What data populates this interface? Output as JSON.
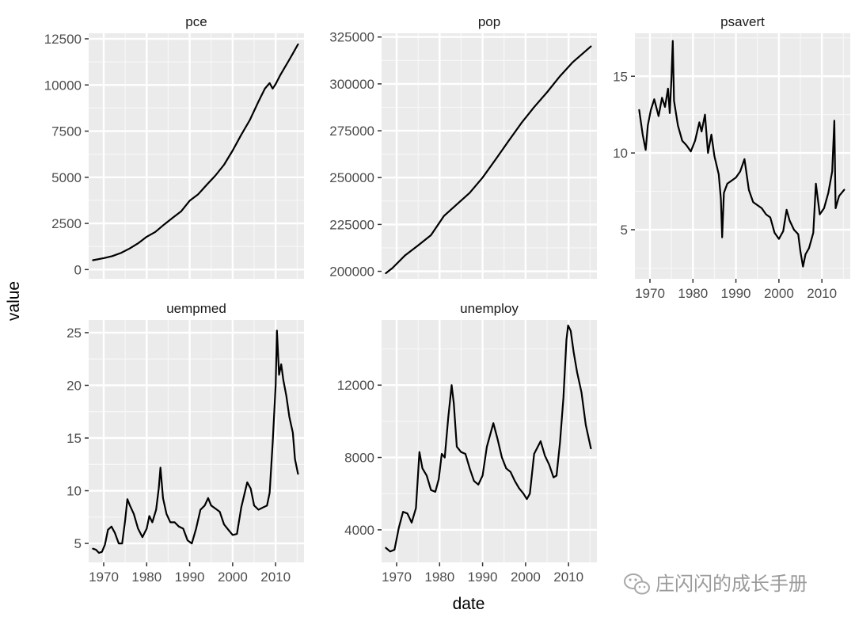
{
  "chart_data": {
    "type": "line",
    "layout": "facet_wrap",
    "ncol": 3,
    "scales": "free_y",
    "xlabel": "date",
    "ylabel": "value",
    "x_ticks": [
      "1970",
      "1980",
      "1990",
      "2000",
      "2010"
    ],
    "x_tick_values": [
      1970,
      1980,
      1990,
      2000,
      2010
    ],
    "xlim": [
      1966.5,
      2016.6
    ],
    "grid": true,
    "legend": "none",
    "line_color": "#000000",
    "panel_background": "#ebebeb",
    "facets": [
      {
        "name": "pce",
        "ylim": [
          -500,
          12800
        ],
        "y_ticks": [
          0,
          2500,
          5000,
          7500,
          10000,
          12500
        ],
        "y_tick_labels": [
          "0",
          "2500",
          "5000",
          "7500",
          "10000",
          "12500"
        ],
        "show_x_axis": false,
        "x": [
          1967.5,
          1970,
          1972,
          1974,
          1976,
          1978,
          1980,
          1982,
          1984,
          1986,
          1988,
          1990,
          1992,
          1994,
          1996,
          1998,
          2000,
          2002,
          2004,
          2006,
          2007.5,
          2008.6,
          2009.3,
          2010,
          2011,
          2012,
          2013,
          2014,
          2015.2
        ],
        "y": [
          510,
          620,
          730,
          900,
          1140,
          1420,
          1780,
          2040,
          2430,
          2800,
          3150,
          3730,
          4080,
          4600,
          5100,
          5680,
          6450,
          7300,
          8100,
          9100,
          9800,
          10100,
          9800,
          10050,
          10500,
          10900,
          11300,
          11700,
          12200
        ]
      },
      {
        "name": "pop",
        "ylim": [
          196000,
          327000
        ],
        "y_ticks": [
          200000,
          225000,
          250000,
          275000,
          300000,
          325000
        ],
        "y_tick_labels": [
          "200000",
          "225000",
          "250000",
          "275000",
          "300000",
          "325000"
        ],
        "show_x_axis": false,
        "x": [
          1967.5,
          1969,
          1972,
          1975,
          1978,
          1981,
          1984,
          1987,
          1990,
          1993,
          1996,
          1999,
          2002,
          2005,
          2008,
          2011,
          2015.2
        ],
        "y": [
          199000,
          201700,
          208600,
          213800,
          219300,
          229500,
          235700,
          241900,
          250000,
          259600,
          269400,
          279000,
          287600,
          295500,
          304100,
          311600,
          320000
        ]
      },
      {
        "name": "psavert",
        "ylim": [
          1.8,
          17.8
        ],
        "y_ticks": [
          5,
          10,
          15
        ],
        "y_tick_labels": [
          "5",
          "10",
          "15"
        ],
        "show_x_axis": true,
        "x": [
          1967.5,
          1968.3,
          1969,
          1969.5,
          1970.2,
          1971,
          1972,
          1972.8,
          1973.5,
          1974.2,
          1974.6,
          1975,
          1975.3,
          1975.6,
          1976.5,
          1977.5,
          1978.5,
          1979.5,
          1980.5,
          1981.5,
          1982,
          1982.8,
          1983.5,
          1984.3,
          1985,
          1986,
          1986.5,
          1986.8,
          1987.2,
          1988,
          1989,
          1990,
          1991,
          1992,
          1993,
          1994,
          1995,
          1996,
          1997,
          1998,
          1999,
          2000,
          2001,
          2001.8,
          2002.5,
          2003.5,
          2004.5,
          2005,
          2005.6,
          2006.2,
          2007,
          2008,
          2008.6,
          2009.5,
          2010.5,
          2011.5,
          2012.4,
          2012.9,
          2013.2,
          2014,
          2015.2
        ],
        "y": [
          12.8,
          11.2,
          10.2,
          11.8,
          12.8,
          13.5,
          12.4,
          13.6,
          13.0,
          14.2,
          12.6,
          14.8,
          17.3,
          13.4,
          11.8,
          10.8,
          10.5,
          10.1,
          10.8,
          12.0,
          11.4,
          12.5,
          10.0,
          11.2,
          9.8,
          8.6,
          7.0,
          4.5,
          7.4,
          8.0,
          8.2,
          8.4,
          8.8,
          9.6,
          7.6,
          6.8,
          6.6,
          6.4,
          6.0,
          5.8,
          4.8,
          4.4,
          4.9,
          6.3,
          5.6,
          5.0,
          4.7,
          3.6,
          2.6,
          3.4,
          3.8,
          4.8,
          8.0,
          6.0,
          6.4,
          7.4,
          8.8,
          12.1,
          6.4,
          7.2,
          7.6
        ]
      },
      {
        "name": "uempmed",
        "ylim": [
          3.2,
          26.2
        ],
        "y_ticks": [
          5,
          10,
          15,
          20,
          25
        ],
        "y_tick_labels": [
          "5",
          "10",
          "15",
          "20",
          "25"
        ],
        "show_x_axis": true,
        "x": [
          1967.5,
          1968.2,
          1968.9,
          1969.6,
          1970.3,
          1971,
          1971.8,
          1972.6,
          1973.5,
          1974.3,
          1975,
          1975.5,
          1976.1,
          1977,
          1978,
          1979,
          1980,
          1980.6,
          1981.3,
          1982.2,
          1982.8,
          1983.2,
          1983.8,
          1984.6,
          1985.5,
          1986.5,
          1987.5,
          1988.5,
          1989.5,
          1990.5,
          1991.5,
          1992.5,
          1993.5,
          1994.3,
          1995,
          1996,
          1997,
          1998,
          1999,
          2000,
          2001,
          2002,
          2002.7,
          2003.4,
          2004.2,
          2005,
          2006,
          2007,
          2008,
          2008.6,
          2009.3,
          2010,
          2010.3,
          2010.8,
          2011.3,
          2011.8,
          2012.5,
          2013.2,
          2014,
          2014.5,
          2015.2
        ],
        "y": [
          4.5,
          4.4,
          4.1,
          4.2,
          4.9,
          6.3,
          6.6,
          6.0,
          5.0,
          5.0,
          7.2,
          9.2,
          8.6,
          7.8,
          6.4,
          5.6,
          6.4,
          7.6,
          7.0,
          8.2,
          10.2,
          12.2,
          9.3,
          7.8,
          7.0,
          7.0,
          6.6,
          6.4,
          5.3,
          5.0,
          6.4,
          8.2,
          8.6,
          9.3,
          8.6,
          8.3,
          8.0,
          6.8,
          6.3,
          5.8,
          5.9,
          8.4,
          9.6,
          10.8,
          10.2,
          8.6,
          8.2,
          8.4,
          8.6,
          9.8,
          14.5,
          20.0,
          25.2,
          21.0,
          22.0,
          20.5,
          19.0,
          17.0,
          15.5,
          13.0,
          11.6
        ]
      },
      {
        "name": "unemploy",
        "ylim": [
          2200,
          15600
        ],
        "y_ticks": [
          4000,
          8000,
          12000
        ],
        "y_tick_labels": [
          "4000",
          "8000",
          "12000"
        ],
        "show_x_axis": true,
        "x": [
          1967.5,
          1968.5,
          1969.5,
          1970.5,
          1971.5,
          1972.5,
          1973.5,
          1974.5,
          1975.3,
          1976,
          1977,
          1978,
          1979,
          1979.8,
          1980.5,
          1981.2,
          1982,
          1982.8,
          1983.3,
          1984,
          1985,
          1986,
          1987,
          1988,
          1989,
          1990,
          1991,
          1992.5,
          1993.5,
          1994.5,
          1995.5,
          1996.5,
          1997.5,
          1998.5,
          1999.5,
          2000.3,
          2001,
          2002,
          2003.5,
          2004.5,
          2005.5,
          2006.5,
          2007.2,
          2008,
          2008.8,
          2009.5,
          2009.9,
          2010.5,
          2011.2,
          2012,
          2013,
          2014,
          2015.2
        ],
        "y": [
          3000,
          2800,
          2900,
          4100,
          5000,
          4900,
          4400,
          5200,
          8300,
          7400,
          7000,
          6200,
          6100,
          6800,
          8200,
          8000,
          10200,
          12000,
          11000,
          8600,
          8300,
          8200,
          7400,
          6700,
          6500,
          7000,
          8600,
          9900,
          9000,
          8000,
          7400,
          7200,
          6700,
          6300,
          6000,
          5700,
          6000,
          8200,
          8900,
          8100,
          7600,
          6900,
          7000,
          8800,
          11300,
          14500,
          15300,
          15000,
          13800,
          12700,
          11600,
          9800,
          8500
        ]
      }
    ]
  },
  "watermark": {
    "text": "庄闪闪的成长手册",
    "icon": "wechat-icon"
  }
}
